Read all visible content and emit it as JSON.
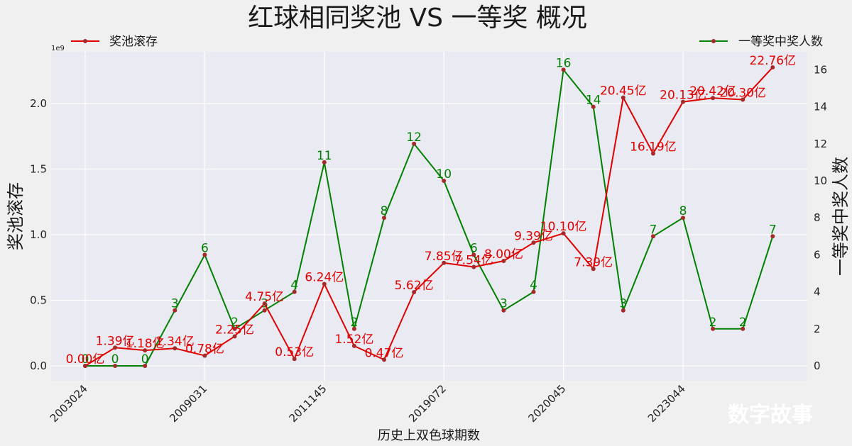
{
  "chart_data": {
    "type": "line",
    "title": "红球相同奖池 VS 一等奖 概况",
    "xlabel": "历史上双色球期数",
    "ylabel": "奖池滚存",
    "y2label": "一等奖中奖人数",
    "y_scale_note": "1e9",
    "ylim": [
      -0.1,
      2.3
    ],
    "y2lim": [
      -0.8,
      16.9
    ],
    "y_ticks": [
      "0.0",
      "0.5",
      "1.0",
      "1.5",
      "2.0"
    ],
    "y2_ticks": [
      "0",
      "2",
      "4",
      "6",
      "8",
      "10",
      "12",
      "14",
      "16"
    ],
    "x_tick_labels": [
      "2003024",
      "2009031",
      "2011145",
      "2019072",
      "2020045",
      "2023044"
    ],
    "x_tick_index": [
      0,
      4,
      8,
      12,
      16,
      20
    ],
    "legend": {
      "left": "奖池滚存",
      "right": "一等奖中奖人数"
    },
    "series": [
      {
        "name": "奖池滚存",
        "axis": "left",
        "color": "#e00000",
        "values": [
          0.0,
          0.139,
          0.118,
          0.134,
          0.078,
          0.225,
          0.475,
          0.053,
          0.624,
          0.152,
          0.047,
          0.562,
          0.785,
          0.754,
          0.8,
          0.939,
          1.01,
          0.739,
          2.045,
          1.619,
          2.013,
          2.042,
          2.03,
          2.276
        ],
        "labels": [
          "0.00亿",
          "1.39亿",
          "1.18亿",
          "1.34亿",
          "0.78亿",
          "2.25亿",
          "4.75亿",
          "0.53亿",
          "6.24亿",
          "1.52亿",
          "0.47亿",
          "5.62亿",
          "7.85亿",
          "7.54亿",
          "8.00亿",
          "9.39亿",
          "10.10亿",
          "7.39亿",
          "20.45亿",
          "16.19亿",
          "20.13亿",
          "20.42亿",
          "20.30亿",
          "22.76亿"
        ]
      },
      {
        "name": "一等奖中奖人数",
        "axis": "right",
        "color": "#008000",
        "values": [
          0,
          0,
          0,
          3,
          6,
          2,
          3,
          4,
          11,
          2,
          8,
          12,
          10,
          6,
          3,
          4,
          16,
          14,
          3,
          7,
          8,
          2,
          2,
          7
        ],
        "labels": [
          "0",
          "0",
          "0",
          "3",
          "6",
          "2",
          "3",
          "4",
          "11",
          "2",
          "8",
          "12",
          "10",
          "6",
          "3",
          "4",
          "16",
          "14",
          "3",
          "7",
          "8",
          "2",
          "2",
          "7"
        ]
      }
    ],
    "grid": true,
    "legend_placement": "top-left / top-right"
  },
  "watermark": "数字故事",
  "colors": {
    "background": "#f0f0f0",
    "plot_bg": "#eaeaf2",
    "grid": "#ffffff",
    "marker": "#a52a2a"
  }
}
